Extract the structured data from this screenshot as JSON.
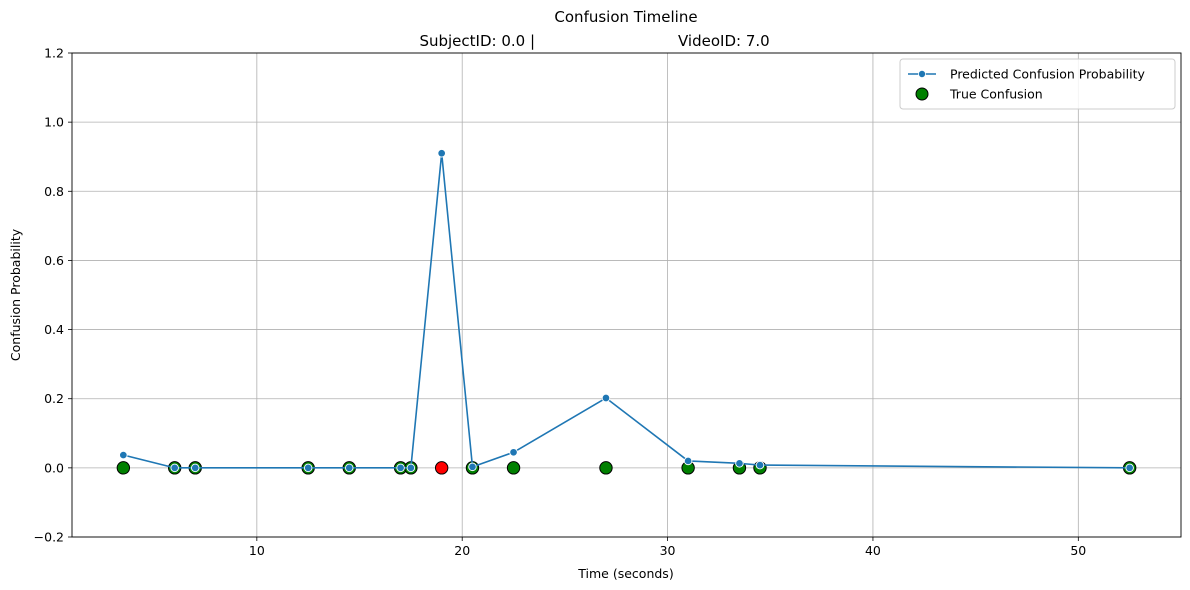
{
  "chart_data": {
    "type": "line",
    "title_line1": "Confusion Timeline",
    "title_line2_left": "SubjectID: 0.0 |",
    "title_line2_right": "VideoID: 7.0",
    "xlabel": "Time (seconds)",
    "ylabel": "Confusion Probability",
    "xlim": [
      1,
      55
    ],
    "ylim": [
      -0.2,
      1.2
    ],
    "xticks": [
      10,
      20,
      30,
      40,
      50
    ],
    "xtick_labels": [
      "10",
      "20",
      "30",
      "40",
      "50"
    ],
    "yticks": [
      -0.2,
      0.0,
      0.2,
      0.4,
      0.6,
      0.8,
      1.0,
      1.2
    ],
    "ytick_labels": [
      "−0.2",
      "0.0",
      "0.2",
      "0.4",
      "0.6",
      "0.8",
      "1.0",
      "1.2"
    ],
    "grid": true,
    "legend_position": "top-right",
    "series": [
      {
        "name": "Predicted Confusion Probability",
        "kind": "line-markers",
        "color": "#1f77b4",
        "x": [
          3.5,
          6,
          7,
          12.5,
          14.5,
          17,
          17.5,
          19,
          20.5,
          22.5,
          27,
          31,
          33.5,
          34.5,
          52.5
        ],
        "y": [
          0.037,
          0.0,
          0.0,
          0.0,
          0.0,
          0.0,
          0.0,
          0.91,
          0.003,
          0.045,
          0.202,
          0.02,
          0.013,
          0.008,
          0.0
        ]
      },
      {
        "name": "True Confusion",
        "kind": "scatter",
        "color": "#008000",
        "x": [
          3.5,
          6,
          7,
          12.5,
          14.5,
          17,
          17.5,
          19,
          20.5,
          22.5,
          27,
          31,
          33.5,
          34.5,
          52.5
        ],
        "y": [
          0,
          0,
          0,
          0,
          0,
          0,
          0,
          0,
          0,
          0,
          0,
          0,
          0,
          0,
          0
        ],
        "colors": [
          "#008000",
          "#008000",
          "#008000",
          "#008000",
          "#008000",
          "#008000",
          "#008000",
          "#ff0000",
          "#008000",
          "#008000",
          "#008000",
          "#008000",
          "#008000",
          "#008000",
          "#008000"
        ]
      }
    ]
  }
}
